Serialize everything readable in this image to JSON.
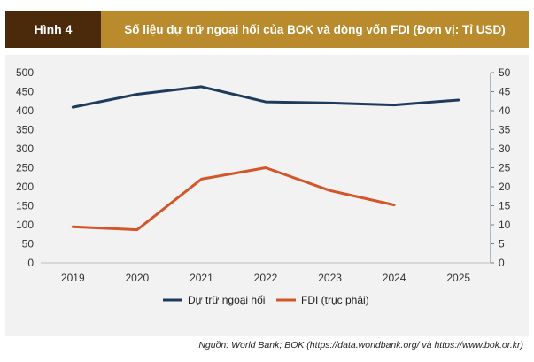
{
  "figure": {
    "label": "Hình 4",
    "title": "Số liệu dự trữ ngoại hối của BOK và dòng vốn FDI (Đơn vị: Tỉ USD)",
    "source": "Nguồn: World Bank; BOK (https://data.worldbank.org/ và https://www.bok.or.kr)"
  },
  "colors": {
    "reserves": "#1f3b5c",
    "fdi": "#d4552a",
    "background": "#f2f2f2",
    "axis": "#6b7f95"
  },
  "chart_data": {
    "type": "line",
    "categories": [
      "2019",
      "2020",
      "2021",
      "2022",
      "2023",
      "2024",
      "2025"
    ],
    "series": [
      {
        "name": "Dự trữ ngoại hối",
        "axis": "left",
        "values": [
          409,
          443,
          463,
          423,
          420,
          415,
          428
        ]
      },
      {
        "name": "FDI (trục phải)",
        "axis": "right",
        "values": [
          9.5,
          8.7,
          22,
          25,
          19,
          15.2,
          null
        ]
      }
    ],
    "y_left": {
      "min": 0,
      "max": 500,
      "ticks": [
        0,
        50,
        100,
        150,
        200,
        250,
        300,
        350,
        400,
        450,
        500
      ]
    },
    "y_right": {
      "min": 0,
      "max": 50,
      "ticks": [
        0,
        5,
        10,
        15,
        20,
        25,
        30,
        35,
        40,
        45,
        50
      ]
    },
    "grid": false,
    "legend_position": "bottom"
  }
}
